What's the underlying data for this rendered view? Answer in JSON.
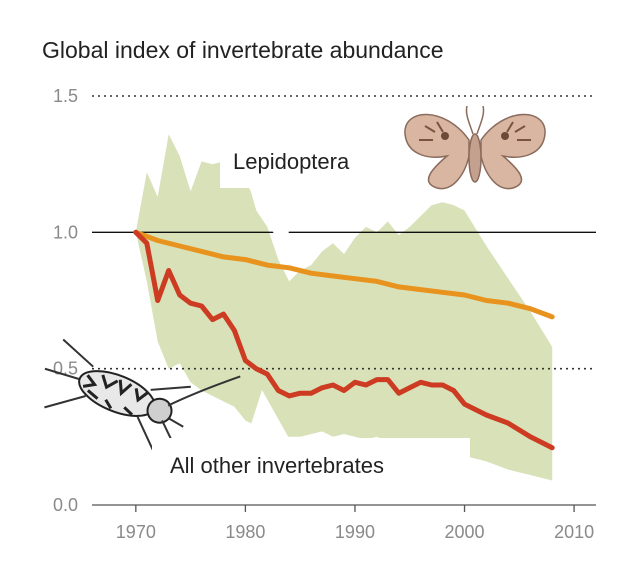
{
  "chart_data": {
    "type": "line",
    "title": "Global index of invertebrate abundance",
    "xlabel": "",
    "ylabel": "",
    "xlim": [
      1966,
      2012
    ],
    "ylim": [
      0,
      1.5
    ],
    "x_ticks": [
      1970,
      1980,
      1990,
      2000,
      2010
    ],
    "y_ticks": [
      "0.0",
      "0.5",
      "1.0",
      "1.5"
    ],
    "grid": "y",
    "series": [
      {
        "name": "Lepidoptera",
        "color": "#e8931e",
        "x": [
          1970,
          1972,
          1974,
          1976,
          1978,
          1980,
          1982,
          1984,
          1986,
          1988,
          1990,
          1992,
          1994,
          1996,
          1998,
          2000,
          2002,
          2004,
          2006,
          2008
        ],
        "y": [
          1.0,
          0.97,
          0.95,
          0.93,
          0.91,
          0.9,
          0.88,
          0.87,
          0.85,
          0.84,
          0.83,
          0.82,
          0.8,
          0.79,
          0.78,
          0.77,
          0.75,
          0.74,
          0.72,
          0.69
        ]
      },
      {
        "name": "All other invertebrates",
        "color": "#cc3b22",
        "x": [
          1970,
          1971,
          1972,
          1973,
          1974,
          1975,
          1976,
          1977,
          1978,
          1979,
          1980,
          1981,
          1982,
          1983,
          1984,
          1985,
          1986,
          1987,
          1988,
          1989,
          1990,
          1991,
          1992,
          1993,
          1994,
          1995,
          1996,
          1997,
          1998,
          1999,
          2000,
          2002,
          2004,
          2006,
          2008
        ],
        "y": [
          1.0,
          0.96,
          0.75,
          0.86,
          0.77,
          0.74,
          0.73,
          0.68,
          0.7,
          0.64,
          0.53,
          0.5,
          0.48,
          0.42,
          0.4,
          0.41,
          0.41,
          0.43,
          0.44,
          0.42,
          0.45,
          0.44,
          0.46,
          0.46,
          0.41,
          0.43,
          0.45,
          0.44,
          0.44,
          0.42,
          0.37,
          0.33,
          0.3,
          0.25,
          0.21
        ]
      }
    ],
    "uncertainty_band": {
      "color": "#d8e1b8",
      "x": [
        1970,
        1971,
        1972,
        1973,
        1974,
        1975,
        1976,
        1977,
        1978,
        1979,
        1980,
        1981,
        1982,
        1983,
        1984,
        1985,
        1986,
        1987,
        1988,
        1989,
        1990,
        1991,
        1992,
        1993,
        1994,
        1995,
        1996,
        1997,
        1998,
        1999,
        2000,
        2002,
        2004,
        2006,
        2008
      ],
      "upper": [
        1.0,
        1.22,
        1.13,
        1.36,
        1.28,
        1.15,
        1.26,
        1.25,
        1.26,
        1.2,
        1.22,
        1.08,
        1.02,
        0.9,
        0.82,
        0.86,
        0.88,
        0.93,
        0.96,
        0.92,
        0.98,
        1.02,
        1.0,
        1.04,
        0.99,
        1.02,
        1.06,
        1.1,
        1.11,
        1.1,
        1.08,
        0.95,
        0.83,
        0.71,
        0.58
      ],
      "lower": [
        1.0,
        0.82,
        0.6,
        0.5,
        0.52,
        0.45,
        0.42,
        0.4,
        0.38,
        0.36,
        0.31,
        0.29,
        0.27,
        0.26,
        0.25,
        0.25,
        0.26,
        0.27,
        0.25,
        0.26,
        0.25,
        0.24,
        0.25,
        0.23,
        0.22,
        0.21,
        0.22,
        0.21,
        0.2,
        0.19,
        0.18,
        0.16,
        0.13,
        0.11,
        0.09
      ]
    },
    "annotations": [
      {
        "text": "Lepidoptera",
        "series": "Lepidoptera"
      },
      {
        "text": "All other invertebrates",
        "series": "All other invertebrates"
      }
    ],
    "illustrations": [
      "moth-illustration",
      "beetle-illustration"
    ]
  }
}
